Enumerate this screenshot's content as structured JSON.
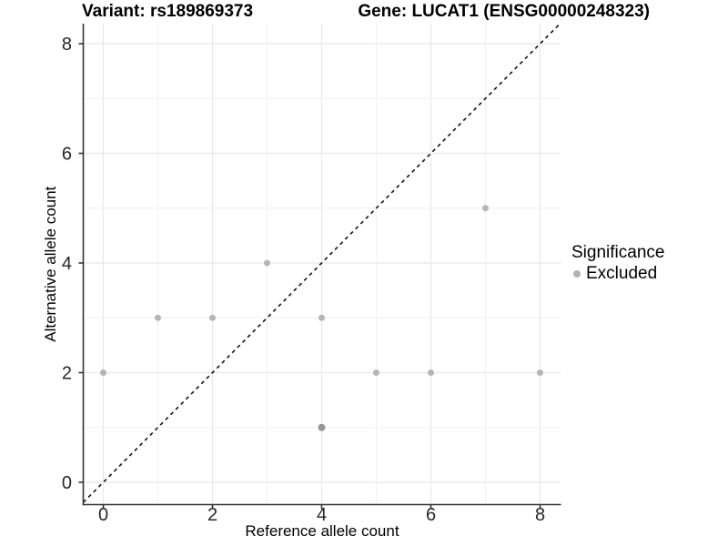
{
  "titles": {
    "left": "Variant: rs189869373",
    "right": "Gene: LUCAT1 (ENSG00000248323)"
  },
  "chart_data": {
    "type": "scatter",
    "title_left": "Variant: rs189869373",
    "title_right": "Gene: LUCAT1 (ENSG00000248323)",
    "xlabel": "Reference allele count",
    "ylabel": "Alternative allele count",
    "xlim": [
      -0.4,
      8.4
    ],
    "ylim": [
      -0.4,
      8.4
    ],
    "x_ticks": [
      0,
      2,
      4,
      6,
      8
    ],
    "y_ticks": [
      0,
      2,
      4,
      6,
      8
    ],
    "grid": "on",
    "legend_position": "right",
    "legend": {
      "title": "Significance",
      "items": [
        {
          "label": "Excluded",
          "color": "#b3b3b3"
        }
      ]
    },
    "identity_line": {
      "style": "dashed",
      "color": "#111111"
    },
    "series": [
      {
        "name": "Excluded",
        "color": "#b5b5b5",
        "dark_color": "#969696",
        "points": [
          {
            "x": 0,
            "y": 2
          },
          {
            "x": 1,
            "y": 3
          },
          {
            "x": 2,
            "y": 3
          },
          {
            "x": 3,
            "y": 4
          },
          {
            "x": 4,
            "y": 1,
            "darker": true
          },
          {
            "x": 4,
            "y": 3
          },
          {
            "x": 5,
            "y": 2
          },
          {
            "x": 6,
            "y": 2
          },
          {
            "x": 7,
            "y": 5
          },
          {
            "x": 8,
            "y": 2
          }
        ]
      }
    ]
  },
  "colors": {
    "background": "#ffffff",
    "grid_major": "#e8e8e8",
    "grid_minor": "#f2f2f2",
    "axis_line": "#333333",
    "tick_text": "#262626",
    "axis_title_text": "#000000"
  }
}
